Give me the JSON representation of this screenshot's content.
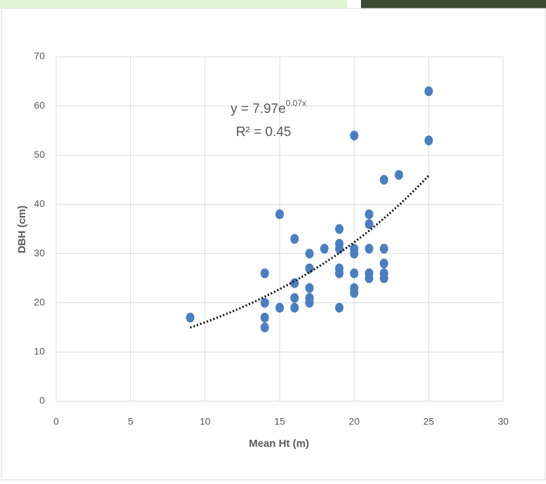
{
  "chart_data": {
    "type": "scatter",
    "xlabel": "Mean Ht (m)",
    "ylabel": "DBH (cm)",
    "xlim": [
      0,
      30
    ],
    "xticks": [
      0,
      5,
      10,
      15,
      20,
      25,
      30
    ],
    "ylim": [
      0,
      70
    ],
    "yticks": [
      0,
      10,
      20,
      30,
      40,
      50,
      60,
      70
    ],
    "grid": true,
    "series": [
      {
        "color": "#4a7ebf",
        "x": [
          9,
          14,
          14,
          14,
          14,
          15,
          15,
          16,
          16,
          16,
          16,
          17,
          17,
          17,
          17,
          17,
          18,
          19,
          19,
          19,
          19,
          19,
          19,
          20,
          20,
          20,
          20,
          20,
          20,
          21,
          21,
          21,
          21,
          21,
          22,
          22,
          22,
          22,
          22,
          23,
          25,
          25
        ],
        "values": [
          17,
          26,
          20,
          17,
          15,
          38,
          19,
          33,
          24,
          21,
          19,
          30,
          27,
          23,
          21,
          20,
          31,
          35,
          32,
          31,
          27,
          26,
          19,
          54,
          31,
          30,
          26,
          23,
          22,
          38,
          36,
          31,
          26,
          25,
          45,
          31,
          28,
          26,
          25,
          46,
          63,
          53
        ]
      }
    ],
    "trendline": {
      "a": 7.97,
      "b": 0.07,
      "equation": [
        "y = 7.97e",
        "0.07x"
      ],
      "r2_label": "R² = 0.45",
      "color": "#000000"
    }
  }
}
